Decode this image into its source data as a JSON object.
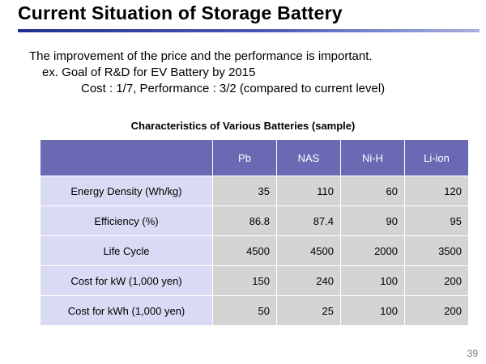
{
  "slide": {
    "title": "Current Situation of Storage Battery",
    "intro": {
      "line1": "The improvement of the price and the performance is important.",
      "line2": "ex. Goal of R&D for EV Battery by 2015",
      "line3": "Cost : 1/7, Performance : 3/2  (compared to current level)"
    },
    "page_number": "39"
  },
  "table": {
    "caption": "Characteristics of Various Batteries (sample)",
    "columns": [
      "Pb",
      "NAS",
      "Ni-H",
      "Li-ion"
    ],
    "rows": [
      {
        "label": "Energy Density (Wh/kg)",
        "values": [
          "35",
          "110",
          "60",
          "120"
        ]
      },
      {
        "label": "Efficiency (%)",
        "values": [
          "86.8",
          "87.4",
          "90",
          "95"
        ]
      },
      {
        "label": "Life Cycle",
        "values": [
          "4500",
          "4500",
          "2000",
          "3500"
        ]
      },
      {
        "label": "Cost for kW (1,000 yen)",
        "values": [
          "150",
          "240",
          "100",
          "200"
        ]
      },
      {
        "label": "Cost for kWh (1,000 yen)",
        "values": [
          "50",
          "25",
          "100",
          "200"
        ]
      }
    ]
  }
}
